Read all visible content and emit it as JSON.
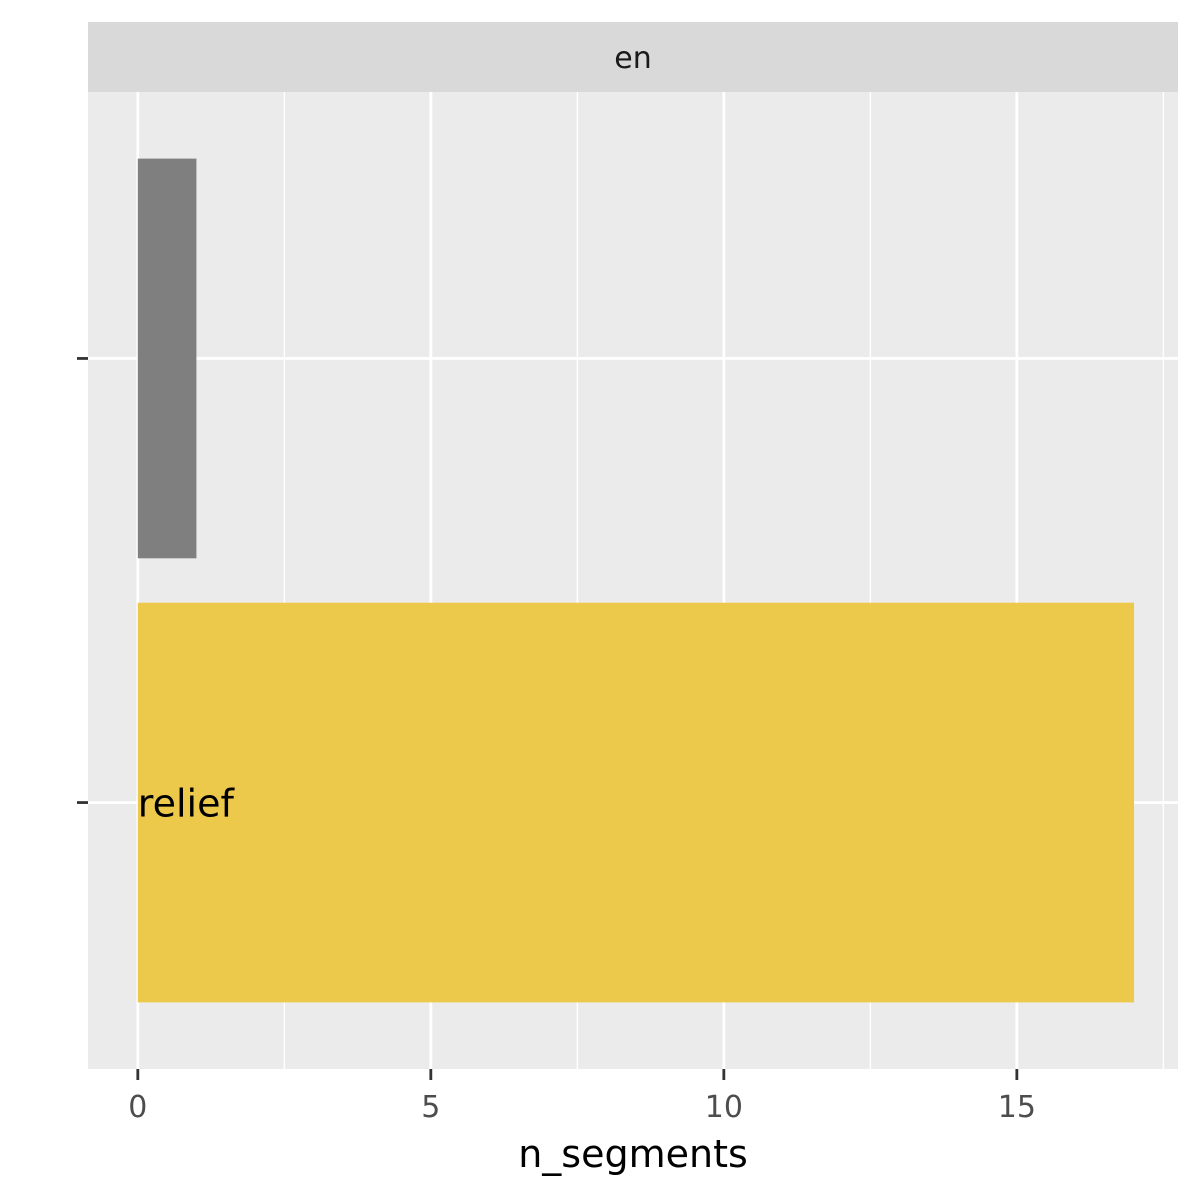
{
  "chart_data": {
    "type": "bar",
    "orientation": "horizontal",
    "facet": "en",
    "categories": [
      "",
      ""
    ],
    "values": [
      1,
      17
    ],
    "bar_labels": [
      "",
      "relief"
    ],
    "bar_colors": [
      "#7f7f7f",
      "#ecc94b"
    ],
    "xlabel": "n_segments",
    "ylabel": "",
    "xlim": [
      -0.85,
      17.75
    ],
    "xticks": [
      0,
      5,
      10,
      15
    ],
    "xtick_labels": [
      "0",
      "5",
      "10",
      "15"
    ],
    "grid": true,
    "legend": "none",
    "colors": {
      "panel_background": "#ebebeb",
      "strip_background": "#d9d9d9",
      "grid_line": "#ffffff"
    }
  }
}
